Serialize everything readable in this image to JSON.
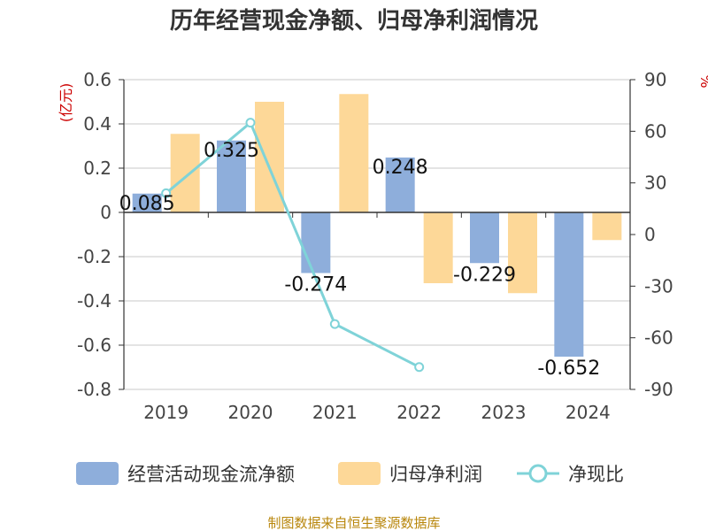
{
  "chart_data": {
    "type": "bar",
    "title": "历年经营现金净额、归母净利润情况",
    "categories": [
      "2019",
      "2020",
      "2021",
      "2022",
      "2023",
      "2024"
    ],
    "series": [
      {
        "name": "经营活动现金流净额",
        "type": "bar",
        "axis": "left",
        "color": "#8eaedb",
        "values": [
          0.085,
          0.325,
          -0.274,
          0.248,
          -0.229,
          -0.652
        ],
        "labels": [
          "0.085",
          "0.325",
          "-0.274",
          "0.248",
          "-0.229",
          "-0.652"
        ]
      },
      {
        "name": "归母净利润",
        "type": "bar",
        "axis": "left",
        "color": "#fdd898",
        "values": [
          0.355,
          0.5,
          0.535,
          -0.32,
          -0.365,
          -0.125
        ]
      },
      {
        "name": "净现比",
        "type": "line",
        "axis": "right",
        "color": "#7fd3d8",
        "values": [
          24,
          65,
          -52,
          -77,
          null,
          null
        ]
      }
    ],
    "left_axis": {
      "unit": "(亿元)",
      "ylim": [
        -0.8,
        0.6
      ],
      "ticks": [
        0.6,
        0.4,
        0.2,
        0,
        -0.2,
        -0.4,
        -0.6,
        -0.8
      ],
      "tick_labels": [
        "0.6",
        "0.4",
        "0.2",
        "0",
        "-0.2",
        "-0.4",
        "-0.6",
        "-0.8"
      ]
    },
    "right_axis": {
      "unit": "%",
      "ylim": [
        -90,
        90
      ],
      "ticks": [
        90,
        60,
        30,
        0,
        -30,
        -60,
        -90
      ],
      "tick_labels": [
        "90",
        "60",
        "30",
        "0",
        "-30",
        "-60",
        "-90"
      ]
    },
    "grid": true,
    "legend_position": "bottom"
  },
  "source": "制图数据来自恒生聚源数据库"
}
